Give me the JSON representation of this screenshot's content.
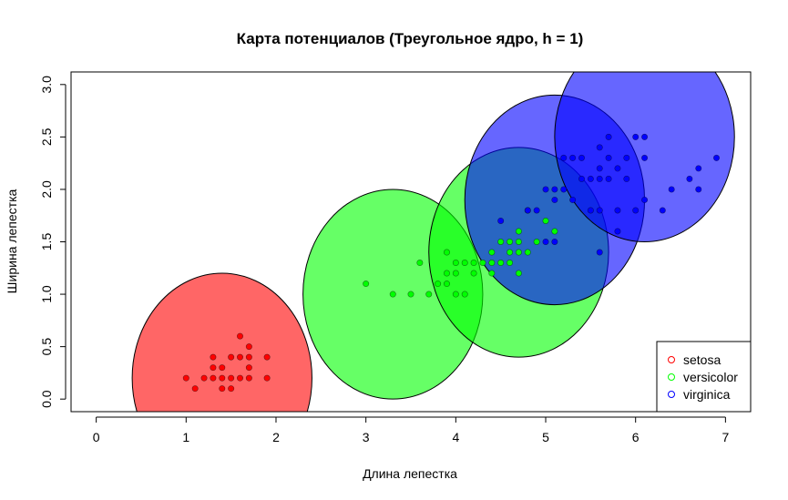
{
  "chart_data": {
    "type": "scatter",
    "title": "Карта потенциалов (Треугольное ядро, h = 1)",
    "xlabel": "Длина лепестка",
    "ylabel": "Ширина лепестка",
    "xlim": [
      -0.28,
      7.28
    ],
    "ylim": [
      -0.12,
      3.12
    ],
    "xticks": [
      0,
      1,
      2,
      3,
      4,
      5,
      6,
      7
    ],
    "yticks": [
      0.0,
      0.5,
      1.0,
      1.5,
      2.0,
      2.5,
      3.0
    ],
    "xtick_labels": [
      "0",
      "1",
      "2",
      "3",
      "4",
      "5",
      "6",
      "7"
    ],
    "ytick_labels": [
      "0.0",
      "0.5",
      "1.0",
      "1.5",
      "2.0",
      "2.5",
      "3.0"
    ],
    "legend_position": "bottom-right",
    "grid": false,
    "circles": [
      {
        "class": "setosa",
        "center": [
          1.4,
          0.2
        ],
        "radius": 1.0,
        "color": "#ff0000",
        "opacity": 0.6
      },
      {
        "class": "versicolor",
        "center": [
          3.3,
          1.0
        ],
        "radius": 1.0,
        "color": "#00ff00",
        "opacity": 0.6
      },
      {
        "class": "versicolor",
        "center": [
          4.7,
          1.4
        ],
        "radius": 1.0,
        "color": "#00ff00",
        "opacity": 0.6
      },
      {
        "class": "virginica",
        "center": [
          5.1,
          1.9
        ],
        "radius": 1.0,
        "color": "#0000ff",
        "opacity": 0.6
      },
      {
        "class": "virginica",
        "center": [
          6.1,
          2.5
        ],
        "radius": 1.0,
        "color": "#0000ff",
        "opacity": 0.6
      }
    ],
    "series": [
      {
        "name": "setosa",
        "color": "#ff0000",
        "points": [
          [
            1.0,
            0.2
          ],
          [
            1.1,
            0.1
          ],
          [
            1.2,
            0.2
          ],
          [
            1.3,
            0.2
          ],
          [
            1.3,
            0.3
          ],
          [
            1.3,
            0.4
          ],
          [
            1.4,
            0.1
          ],
          [
            1.4,
            0.2
          ],
          [
            1.4,
            0.3
          ],
          [
            1.5,
            0.1
          ],
          [
            1.5,
            0.2
          ],
          [
            1.5,
            0.4
          ],
          [
            1.6,
            0.2
          ],
          [
            1.6,
            0.4
          ],
          [
            1.6,
            0.6
          ],
          [
            1.7,
            0.2
          ],
          [
            1.7,
            0.3
          ],
          [
            1.7,
            0.4
          ],
          [
            1.7,
            0.5
          ],
          [
            1.9,
            0.2
          ],
          [
            1.9,
            0.4
          ]
        ]
      },
      {
        "name": "versicolor",
        "color": "#00ff00",
        "points": [
          [
            3.0,
            1.1
          ],
          [
            3.3,
            1.0
          ],
          [
            3.5,
            1.0
          ],
          [
            3.6,
            1.3
          ],
          [
            3.7,
            1.0
          ],
          [
            3.8,
            1.1
          ],
          [
            3.9,
            1.1
          ],
          [
            3.9,
            1.2
          ],
          [
            3.9,
            1.4
          ],
          [
            4.0,
            1.0
          ],
          [
            4.0,
            1.2
          ],
          [
            4.0,
            1.3
          ],
          [
            4.1,
            1.0
          ],
          [
            4.1,
            1.3
          ],
          [
            4.2,
            1.2
          ],
          [
            4.2,
            1.3
          ],
          [
            4.3,
            1.3
          ],
          [
            4.4,
            1.2
          ],
          [
            4.4,
            1.3
          ],
          [
            4.4,
            1.4
          ],
          [
            4.5,
            1.3
          ],
          [
            4.5,
            1.5
          ],
          [
            4.6,
            1.3
          ],
          [
            4.6,
            1.4
          ],
          [
            4.6,
            1.5
          ],
          [
            4.7,
            1.2
          ],
          [
            4.7,
            1.4
          ],
          [
            4.7,
            1.5
          ],
          [
            4.7,
            1.6
          ],
          [
            4.8,
            1.4
          ],
          [
            4.8,
            1.8
          ],
          [
            4.9,
            1.5
          ],
          [
            5.0,
            1.7
          ],
          [
            5.1,
            1.6
          ]
        ]
      },
      {
        "name": "virginica",
        "color": "#0000ff",
        "points": [
          [
            4.5,
            1.7
          ],
          [
            4.8,
            1.8
          ],
          [
            4.9,
            1.8
          ],
          [
            5.0,
            1.5
          ],
          [
            5.0,
            2.0
          ],
          [
            5.1,
            1.5
          ],
          [
            5.1,
            1.9
          ],
          [
            5.1,
            2.0
          ],
          [
            5.2,
            2.0
          ],
          [
            5.2,
            2.3
          ],
          [
            5.3,
            1.9
          ],
          [
            5.3,
            2.3
          ],
          [
            5.4,
            2.1
          ],
          [
            5.4,
            2.3
          ],
          [
            5.5,
            1.8
          ],
          [
            5.5,
            2.1
          ],
          [
            5.6,
            1.4
          ],
          [
            5.6,
            1.8
          ],
          [
            5.6,
            2.1
          ],
          [
            5.6,
            2.2
          ],
          [
            5.6,
            2.4
          ],
          [
            5.7,
            2.1
          ],
          [
            5.7,
            2.3
          ],
          [
            5.7,
            2.5
          ],
          [
            5.8,
            1.6
          ],
          [
            5.8,
            1.8
          ],
          [
            5.8,
            2.2
          ],
          [
            5.9,
            2.1
          ],
          [
            5.9,
            2.3
          ],
          [
            6.0,
            1.8
          ],
          [
            6.0,
            2.5
          ],
          [
            6.1,
            1.9
          ],
          [
            6.1,
            2.3
          ],
          [
            6.1,
            2.5
          ],
          [
            6.3,
            1.8
          ],
          [
            6.4,
            2.0
          ],
          [
            6.6,
            2.1
          ],
          [
            6.7,
            2.0
          ],
          [
            6.7,
            2.2
          ],
          [
            6.9,
            2.3
          ]
        ]
      }
    ],
    "legend": [
      {
        "label": "setosa",
        "color": "#ff0000"
      },
      {
        "label": "versicolor",
        "color": "#00ff00"
      },
      {
        "label": "virginica",
        "color": "#0000ff"
      }
    ]
  }
}
